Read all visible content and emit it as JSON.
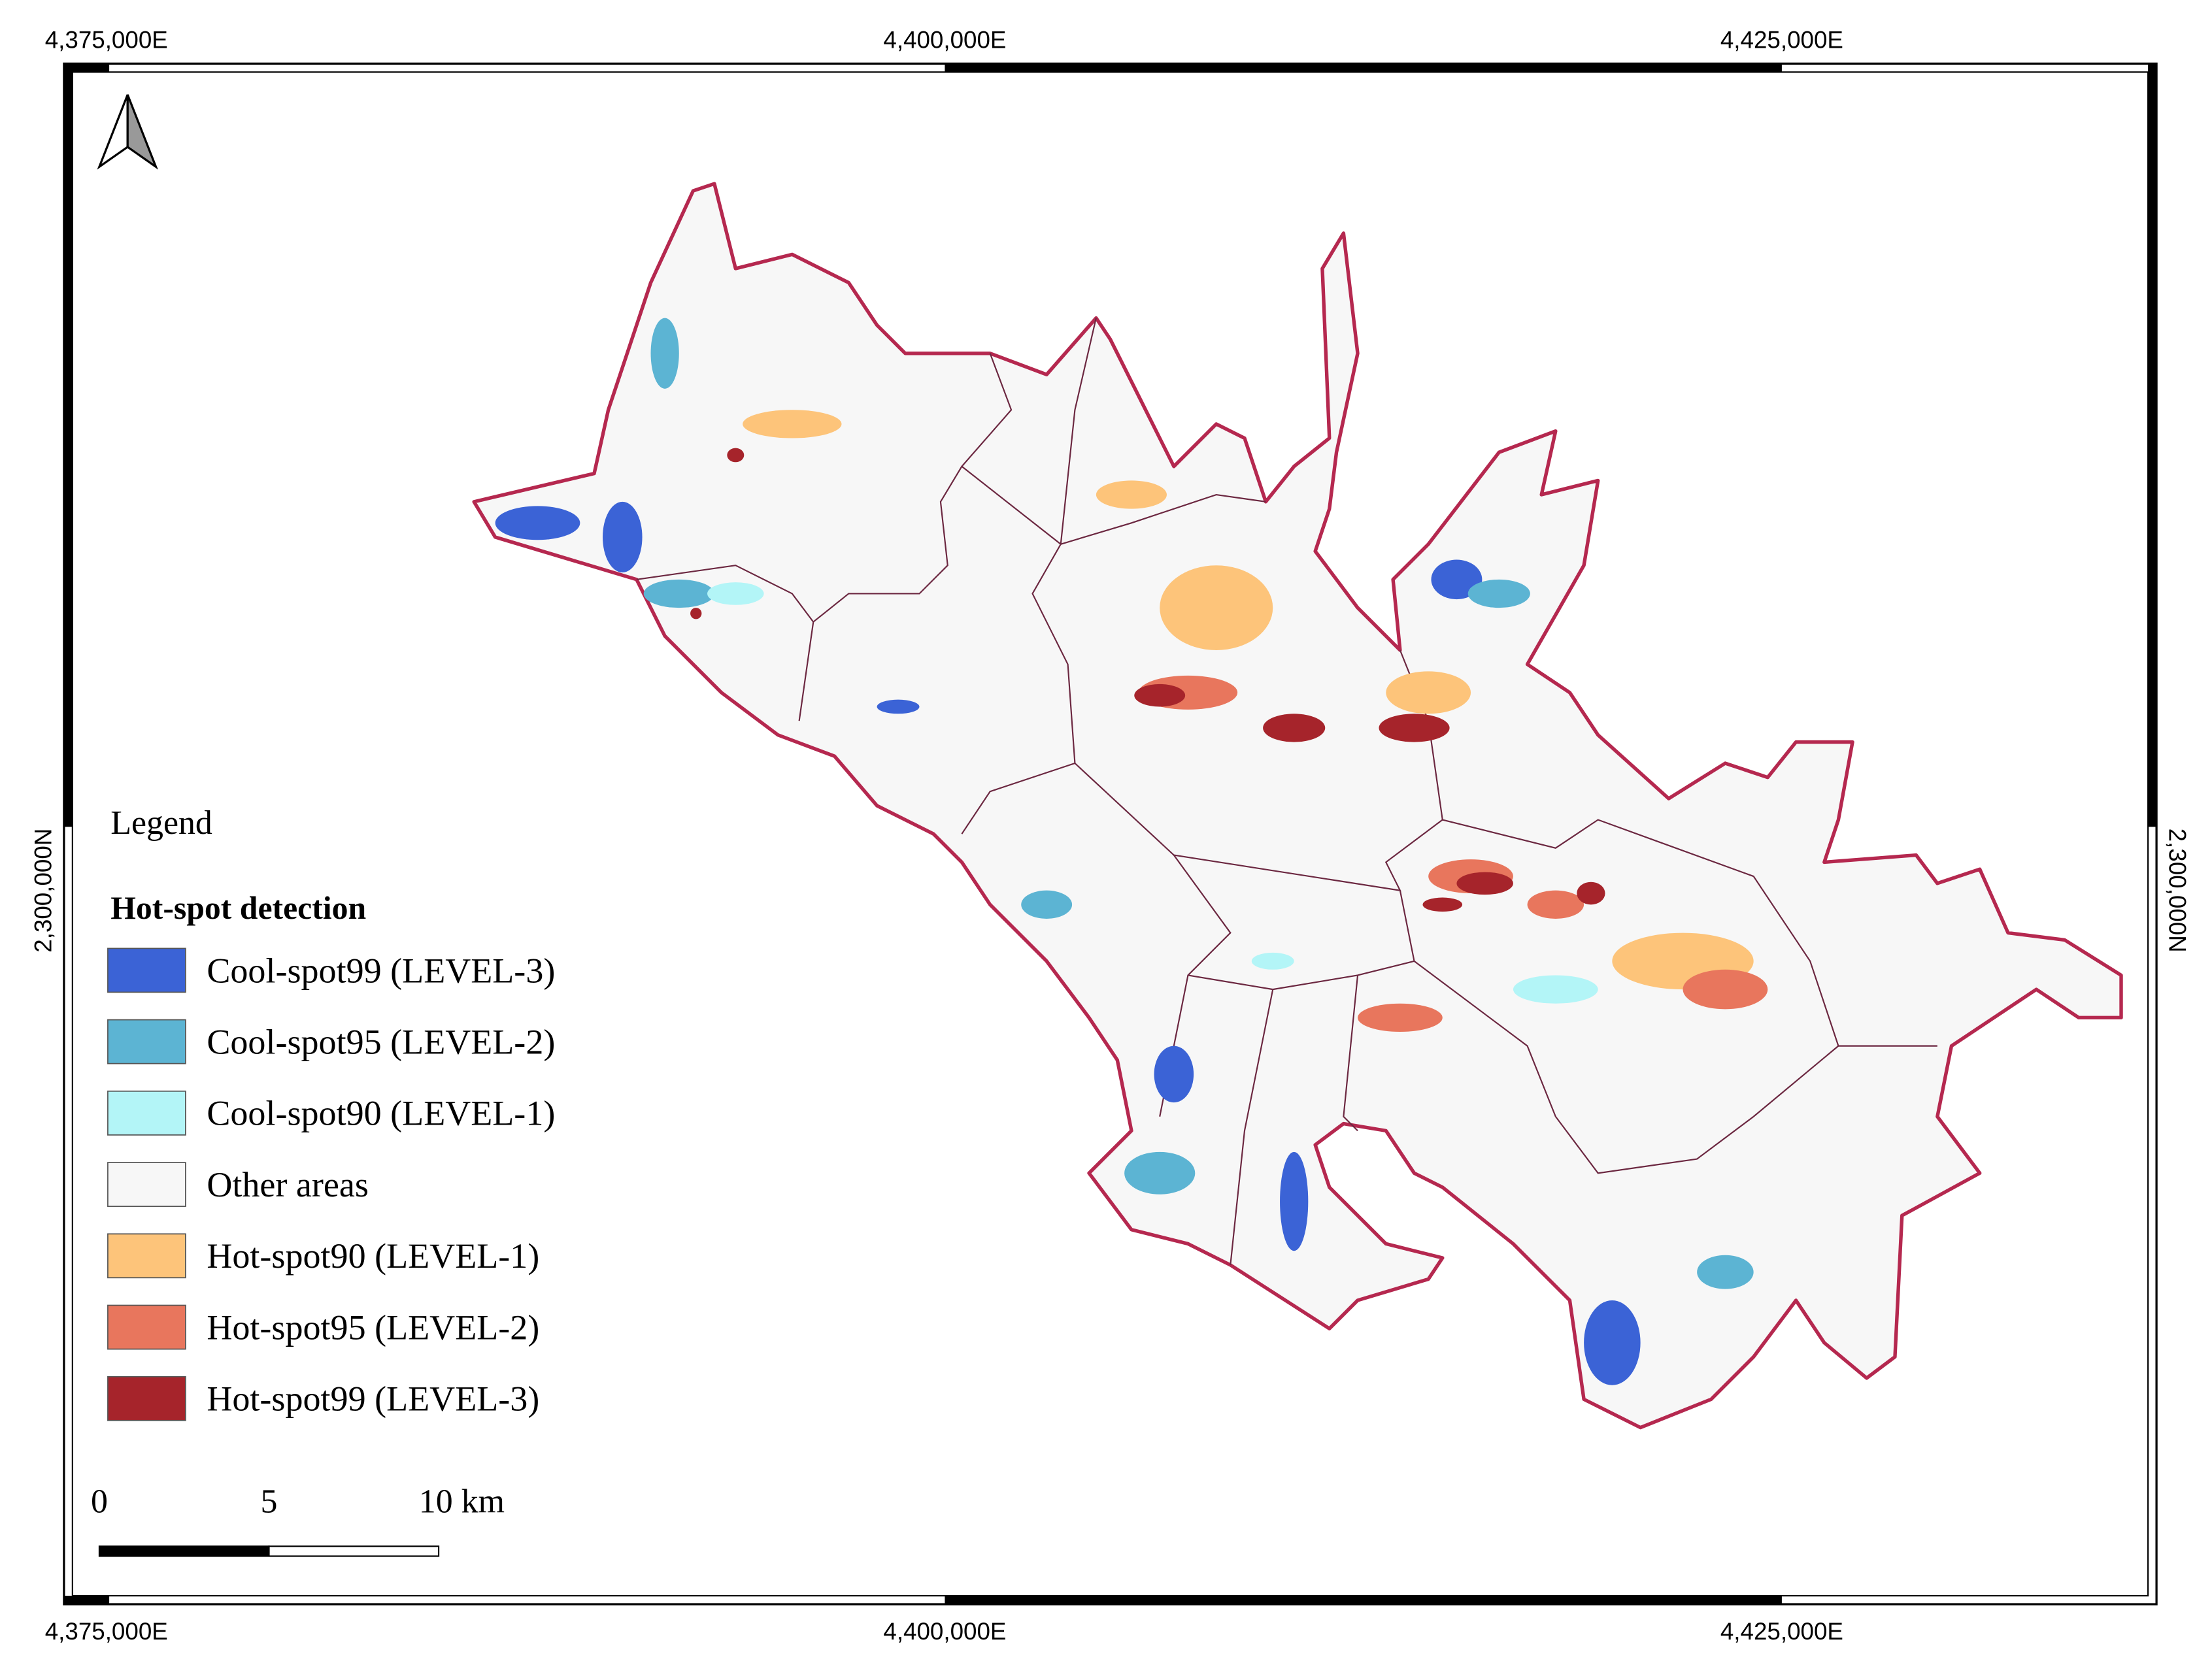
{
  "map": {
    "x_labels": [
      "4,375,000E",
      "4,400,000E",
      "4,425,000E"
    ],
    "y_label": "2,300,000N",
    "legend": {
      "heading": "Legend",
      "title": "Hot-spot detection",
      "items": [
        {
          "label": "Cool-spot99 (LEVEL-3)",
          "color": "#3b63d6"
        },
        {
          "label": "Cool-spot95 (LEVEL-2)",
          "color": "#5cb4d3"
        },
        {
          "label": "Cool-spot90 (LEVEL-1)",
          "color": "#b3f5f7"
        },
        {
          "label": "Other areas",
          "color": "#f7f7f7"
        },
        {
          "label": "Hot-spot90 (LEVEL-1)",
          "color": "#fdc47a"
        },
        {
          "label": "Hot-spot95 (LEVEL-2)",
          "color": "#e8765d"
        },
        {
          "label": "Hot-spot99 (LEVEL-3)",
          "color": "#a6242b"
        }
      ]
    },
    "scale_bar": {
      "labels": [
        "0",
        "5",
        "10 km"
      ]
    }
  }
}
